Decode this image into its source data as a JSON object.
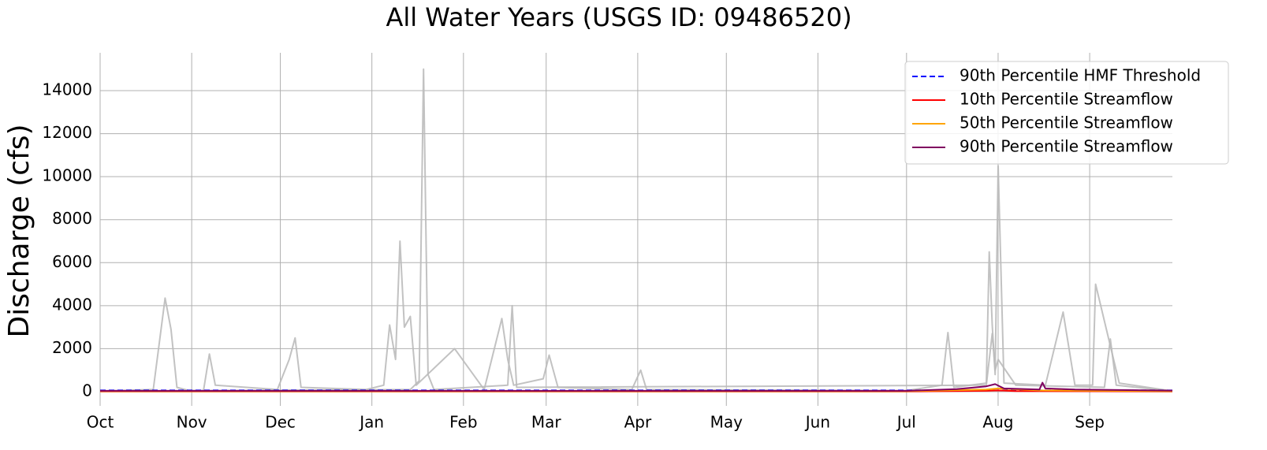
{
  "chart_data": {
    "type": "line",
    "title": "All Water Years (USGS ID: 09486520)",
    "y_label": "Discharge (cfs)",
    "xlim": [
      0,
      363
    ],
    "ylim": [
      -660,
      15760
    ],
    "xticks": [
      {
        "value": 0,
        "label": "Oct"
      },
      {
        "value": 31,
        "label": "Nov"
      },
      {
        "value": 61,
        "label": "Dec"
      },
      {
        "value": 92,
        "label": "Jan"
      },
      {
        "value": 123,
        "label": "Feb"
      },
      {
        "value": 151,
        "label": "Mar"
      },
      {
        "value": 182,
        "label": "Apr"
      },
      {
        "value": 212,
        "label": "May"
      },
      {
        "value": 243,
        "label": "Jun"
      },
      {
        "value": 273,
        "label": "Jul"
      },
      {
        "value": 304,
        "label": "Aug"
      },
      {
        "value": 335,
        "label": "Sep"
      }
    ],
    "yticks": [
      0,
      2000,
      4000,
      6000,
      8000,
      10000,
      12000,
      14000
    ],
    "grid": true,
    "legend": "upper right",
    "series": [
      {
        "color": "#bbbbbb",
        "x": [
          0,
          18,
          22,
          24,
          26,
          30,
          35,
          37,
          39,
          60,
          64,
          66,
          68,
          90,
          96,
          98,
          100,
          101.5,
          103,
          105,
          107,
          120,
          130,
          136,
          138,
          140,
          150,
          152,
          155,
          180,
          183,
          185,
          273,
          285,
          287,
          289,
          300,
          301,
          302,
          303,
          304,
          306,
          320,
          326,
          330,
          336,
          337,
          345,
          363
        ],
        "values": [
          30,
          100,
          4350,
          2900,
          200,
          50,
          50,
          1750,
          300,
          100,
          1500,
          2500,
          200,
          100,
          300,
          3100,
          1500,
          7000,
          3000,
          3500,
          300,
          2000,
          100,
          3400,
          1500,
          300,
          600,
          1700,
          200,
          100,
          1000,
          100,
          50,
          300,
          2750,
          200,
          400,
          6500,
          3100,
          800,
          10500,
          400,
          300,
          3700,
          300,
          300,
          5000,
          400,
          30
        ]
      },
      {
        "color": "#bbbbbb",
        "x": [
          0,
          105,
          108,
          109.5,
          111,
          113,
          138,
          139.5,
          141,
          300,
          302,
          303,
          304,
          310,
          340,
          342,
          344,
          363
        ],
        "values": [
          20,
          100,
          500,
          15000,
          800,
          100,
          300,
          4000,
          200,
          300,
          2700,
          1000,
          1500,
          300,
          200,
          2450,
          300,
          20
        ]
      },
      {
        "name": "90th Percentile HMF Threshold",
        "color": "#0000ff",
        "linestyle": "dashed",
        "x": [
          0,
          363
        ],
        "values": [
          60,
          60
        ]
      },
      {
        "name": "10th Percentile Streamflow",
        "color": "#ff0000",
        "x": [
          0,
          273,
          300,
          304,
          310,
          363
        ],
        "values": [
          10,
          10,
          40,
          60,
          30,
          10
        ]
      },
      {
        "name": "50th Percentile Streamflow",
        "color": "#ffa500",
        "x": [
          0,
          273,
          300,
          304,
          318,
          363
        ],
        "values": [
          20,
          20,
          100,
          150,
          60,
          20
        ]
      },
      {
        "name": "90th Percentile Streamflow",
        "color": "#800060",
        "x": [
          0,
          273,
          290,
          300,
          303,
          306,
          318,
          319,
          320,
          330,
          363
        ],
        "values": [
          40,
          40,
          120,
          250,
          350,
          150,
          100,
          420,
          150,
          100,
          50
        ]
      }
    ]
  }
}
